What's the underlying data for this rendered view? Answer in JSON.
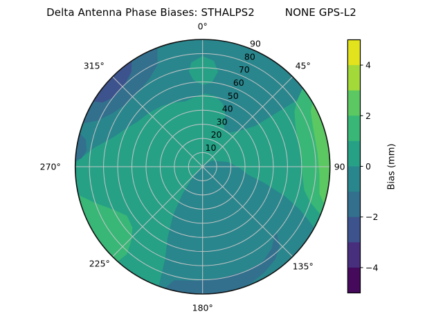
{
  "title": "Delta Antenna Phase Biases: STHALPS2         NONE GPS-L2",
  "chart_data": {
    "type": "polar_contour",
    "title": "Delta Antenna Phase Biases: STHALPS2         NONE GPS-L2",
    "angle_ticks": [
      {
        "deg": 0,
        "label": "0°"
      },
      {
        "deg": 45,
        "label": "45°"
      },
      {
        "deg": 90,
        "label": "90"
      },
      {
        "deg": 135,
        "label": "135°"
      },
      {
        "deg": 180,
        "label": "180°"
      },
      {
        "deg": 225,
        "label": "225°"
      },
      {
        "deg": 270,
        "label": "270°"
      },
      {
        "deg": 315,
        "label": "315°"
      }
    ],
    "radial_ticks": [
      "10",
      "20",
      "30",
      "40",
      "50",
      "60",
      "70",
      "80",
      "90"
    ],
    "radial_axis_max": 90,
    "radial_label_azimuth_deg": 23.2,
    "grid": true,
    "grid_color": "#c6c6c6",
    "colorbar": {
      "label": "Bias (mm)",
      "vmin": -5,
      "vmax": 5,
      "tick_values": [
        4,
        2,
        0,
        -2,
        -4
      ],
      "tick_labels": [
        "4",
        "2",
        "0",
        "−2",
        "−4"
      ]
    },
    "bands": [
      {
        "from": -5,
        "to": -4,
        "color": "#450a5c"
      },
      {
        "from": -4,
        "to": -3,
        "color": "#472f7d"
      },
      {
        "from": -3,
        "to": -2,
        "color": "#3d538e"
      },
      {
        "from": -2,
        "to": -1,
        "color": "#32708e"
      },
      {
        "from": -1,
        "to": 0,
        "color": "#2a868d"
      },
      {
        "from": 0,
        "to": 1,
        "color": "#26a186"
      },
      {
        "from": 1,
        "to": 2,
        "color": "#38b777"
      },
      {
        "from": 2,
        "to": 3,
        "color": "#5bc862"
      },
      {
        "from": 3,
        "to": 4,
        "color": "#a4d93a"
      },
      {
        "from": 4,
        "to": 5,
        "color": "#e2e31d"
      }
    ],
    "base_band": [
      0,
      1
    ],
    "regions": [
      {
        "name": "top-band",
        "band": [
          -1,
          0
        ],
        "points": [
          [
            272,
            90
          ],
          [
            280,
            90
          ],
          [
            290,
            90
          ],
          [
            300,
            90
          ],
          [
            310,
            90
          ],
          [
            320,
            90
          ],
          [
            330,
            90
          ],
          [
            340,
            90
          ],
          [
            350,
            90
          ],
          [
            0,
            90
          ],
          [
            10,
            90
          ],
          [
            20,
            90
          ],
          [
            30,
            90
          ],
          [
            40,
            90
          ],
          [
            50,
            90
          ],
          [
            55,
            90
          ],
          [
            52,
            47
          ],
          [
            45,
            36
          ],
          [
            38,
            31
          ],
          [
            30,
            31
          ],
          [
            24,
            40
          ],
          [
            18,
            47
          ],
          [
            10,
            51
          ],
          [
            2,
            52
          ],
          [
            354,
            50
          ],
          [
            345,
            48
          ],
          [
            336,
            50
          ],
          [
            326,
            52
          ],
          [
            315,
            54
          ],
          [
            305,
            56
          ],
          [
            296,
            61
          ],
          [
            288,
            67
          ],
          [
            280,
            78
          ]
        ]
      },
      {
        "name": "center-bottom",
        "band": [
          -1,
          0
        ],
        "points": [
          [
            45,
            3
          ],
          [
            60,
            8
          ],
          [
            80,
            18
          ],
          [
            92,
            26
          ],
          [
            100,
            32
          ],
          [
            105,
            45
          ],
          [
            110,
            62
          ],
          [
            114,
            75
          ],
          [
            117,
            84
          ],
          [
            119,
            90
          ],
          [
            130,
            90
          ],
          [
            140,
            90
          ],
          [
            150,
            90
          ],
          [
            160,
            90
          ],
          [
            170,
            90
          ],
          [
            180,
            90
          ],
          [
            190,
            90
          ],
          [
            200,
            90
          ],
          [
            202,
            70
          ],
          [
            206,
            56
          ],
          [
            211,
            40
          ],
          [
            216,
            24
          ],
          [
            222,
            10
          ],
          [
            226,
            5
          ]
        ]
      },
      {
        "name": "upper-left-crescent",
        "band": [
          -2,
          -1
        ],
        "points": [
          [
            290,
            90
          ],
          [
            300,
            90
          ],
          [
            310,
            90
          ],
          [
            320,
            90
          ],
          [
            330,
            90
          ],
          [
            339,
            90
          ],
          [
            336,
            79
          ],
          [
            329,
            73
          ],
          [
            320,
            70
          ],
          [
            310,
            70
          ],
          [
            301,
            74
          ],
          [
            294,
            81
          ]
        ]
      },
      {
        "name": "upper-left-core",
        "band": [
          -3,
          -2
        ],
        "points": [
          [
            301,
            90
          ],
          [
            310,
            90
          ],
          [
            318,
            90
          ],
          [
            326,
            90
          ],
          [
            323,
            84
          ],
          [
            316,
            80
          ],
          [
            308,
            80
          ],
          [
            303,
            84
          ]
        ]
      },
      {
        "name": "left-rim-sliver",
        "band": [
          -2,
          -1
        ],
        "points": [
          [
            273,
            90
          ],
          [
            279,
            90
          ],
          [
            285,
            90
          ],
          [
            283,
            85
          ],
          [
            278,
            83
          ],
          [
            274,
            86
          ]
        ]
      },
      {
        "name": "lower-right-band",
        "band": [
          -2,
          -1
        ],
        "points": [
          [
            132,
            70
          ],
          [
            136,
            78
          ],
          [
            142,
            83
          ],
          [
            150,
            86.5
          ],
          [
            158,
            89
          ],
          [
            165,
            90
          ],
          [
            175,
            90
          ],
          [
            185,
            90
          ],
          [
            197,
            90
          ],
          [
            194,
            83
          ],
          [
            183,
            81
          ],
          [
            170,
            80
          ],
          [
            158,
            80
          ],
          [
            148,
            80
          ],
          [
            140,
            76
          ],
          [
            134,
            71
          ]
        ]
      },
      {
        "name": "right-green",
        "band": [
          1,
          2
        ],
        "points": [
          [
            52,
            90
          ],
          [
            60,
            90
          ],
          [
            70,
            90
          ],
          [
            80,
            90
          ],
          [
            90,
            90
          ],
          [
            100,
            90
          ],
          [
            112,
            90
          ],
          [
            108,
            80
          ],
          [
            103,
            74
          ],
          [
            95,
            71
          ],
          [
            86,
            70
          ],
          [
            76,
            70
          ],
          [
            66,
            72
          ],
          [
            59,
            76
          ],
          [
            55,
            82
          ]
        ]
      },
      {
        "name": "right-light-green",
        "band": [
          2,
          3
        ],
        "points": [
          [
            60,
            90
          ],
          [
            70,
            90
          ],
          [
            80,
            90
          ],
          [
            90,
            90
          ],
          [
            100,
            90
          ],
          [
            107,
            90
          ],
          [
            103,
            85
          ],
          [
            94,
            83
          ],
          [
            83,
            82
          ],
          [
            71,
            83
          ],
          [
            63,
            86
          ]
        ]
      },
      {
        "name": "lower-left-green",
        "band": [
          1,
          2
        ],
        "points": [
          [
            222,
            90
          ],
          [
            230,
            90
          ],
          [
            240,
            90
          ],
          [
            250,
            90
          ],
          [
            257,
            90
          ],
          [
            251,
            80
          ],
          [
            244,
            70
          ],
          [
            237,
            64
          ],
          [
            229,
            66
          ],
          [
            224,
            73
          ],
          [
            221,
            82
          ]
        ]
      },
      {
        "name": "top-teal-patch",
        "band": [
          0,
          1
        ],
        "points": [
          [
            354,
            74
          ],
          [
            0,
            78
          ],
          [
            6,
            75
          ],
          [
            9,
            68
          ],
          [
            6,
            60
          ],
          [
            0,
            58
          ],
          [
            354,
            62
          ],
          [
            352,
            68
          ]
        ]
      }
    ]
  }
}
